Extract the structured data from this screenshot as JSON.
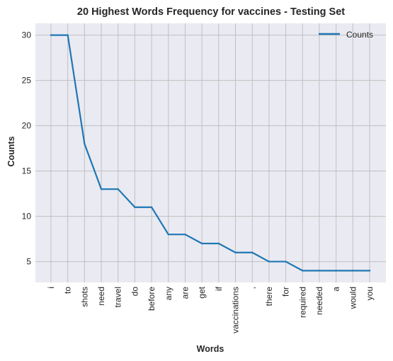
{
  "chart_data": {
    "type": "line",
    "title": "20 Highest Words Frequency for vaccines - Testing Set",
    "xlabel": "Words",
    "ylabel": "Counts",
    "categories": [
      "i",
      "to",
      "shots",
      "need",
      "travel",
      "do",
      "before",
      "any",
      "are",
      "get",
      "if",
      "vaccinations",
      ",",
      "there",
      "for",
      "required",
      "needed",
      "a",
      "would",
      "you"
    ],
    "series": [
      {
        "name": "Counts",
        "values": [
          30,
          30,
          18,
          13,
          13,
          11,
          11,
          8,
          8,
          7,
          7,
          6,
          6,
          5,
          5,
          4,
          4,
          4,
          4,
          4
        ]
      }
    ],
    "ylim": [
      2.7,
      31.3
    ],
    "yticks": [
      5,
      10,
      15,
      20,
      25,
      30
    ],
    "grid": true,
    "legend": "top-right",
    "colors": {
      "line": "#1f77b4",
      "plot_background": "#eaeaf2",
      "grid": "#c0c0c0"
    }
  }
}
